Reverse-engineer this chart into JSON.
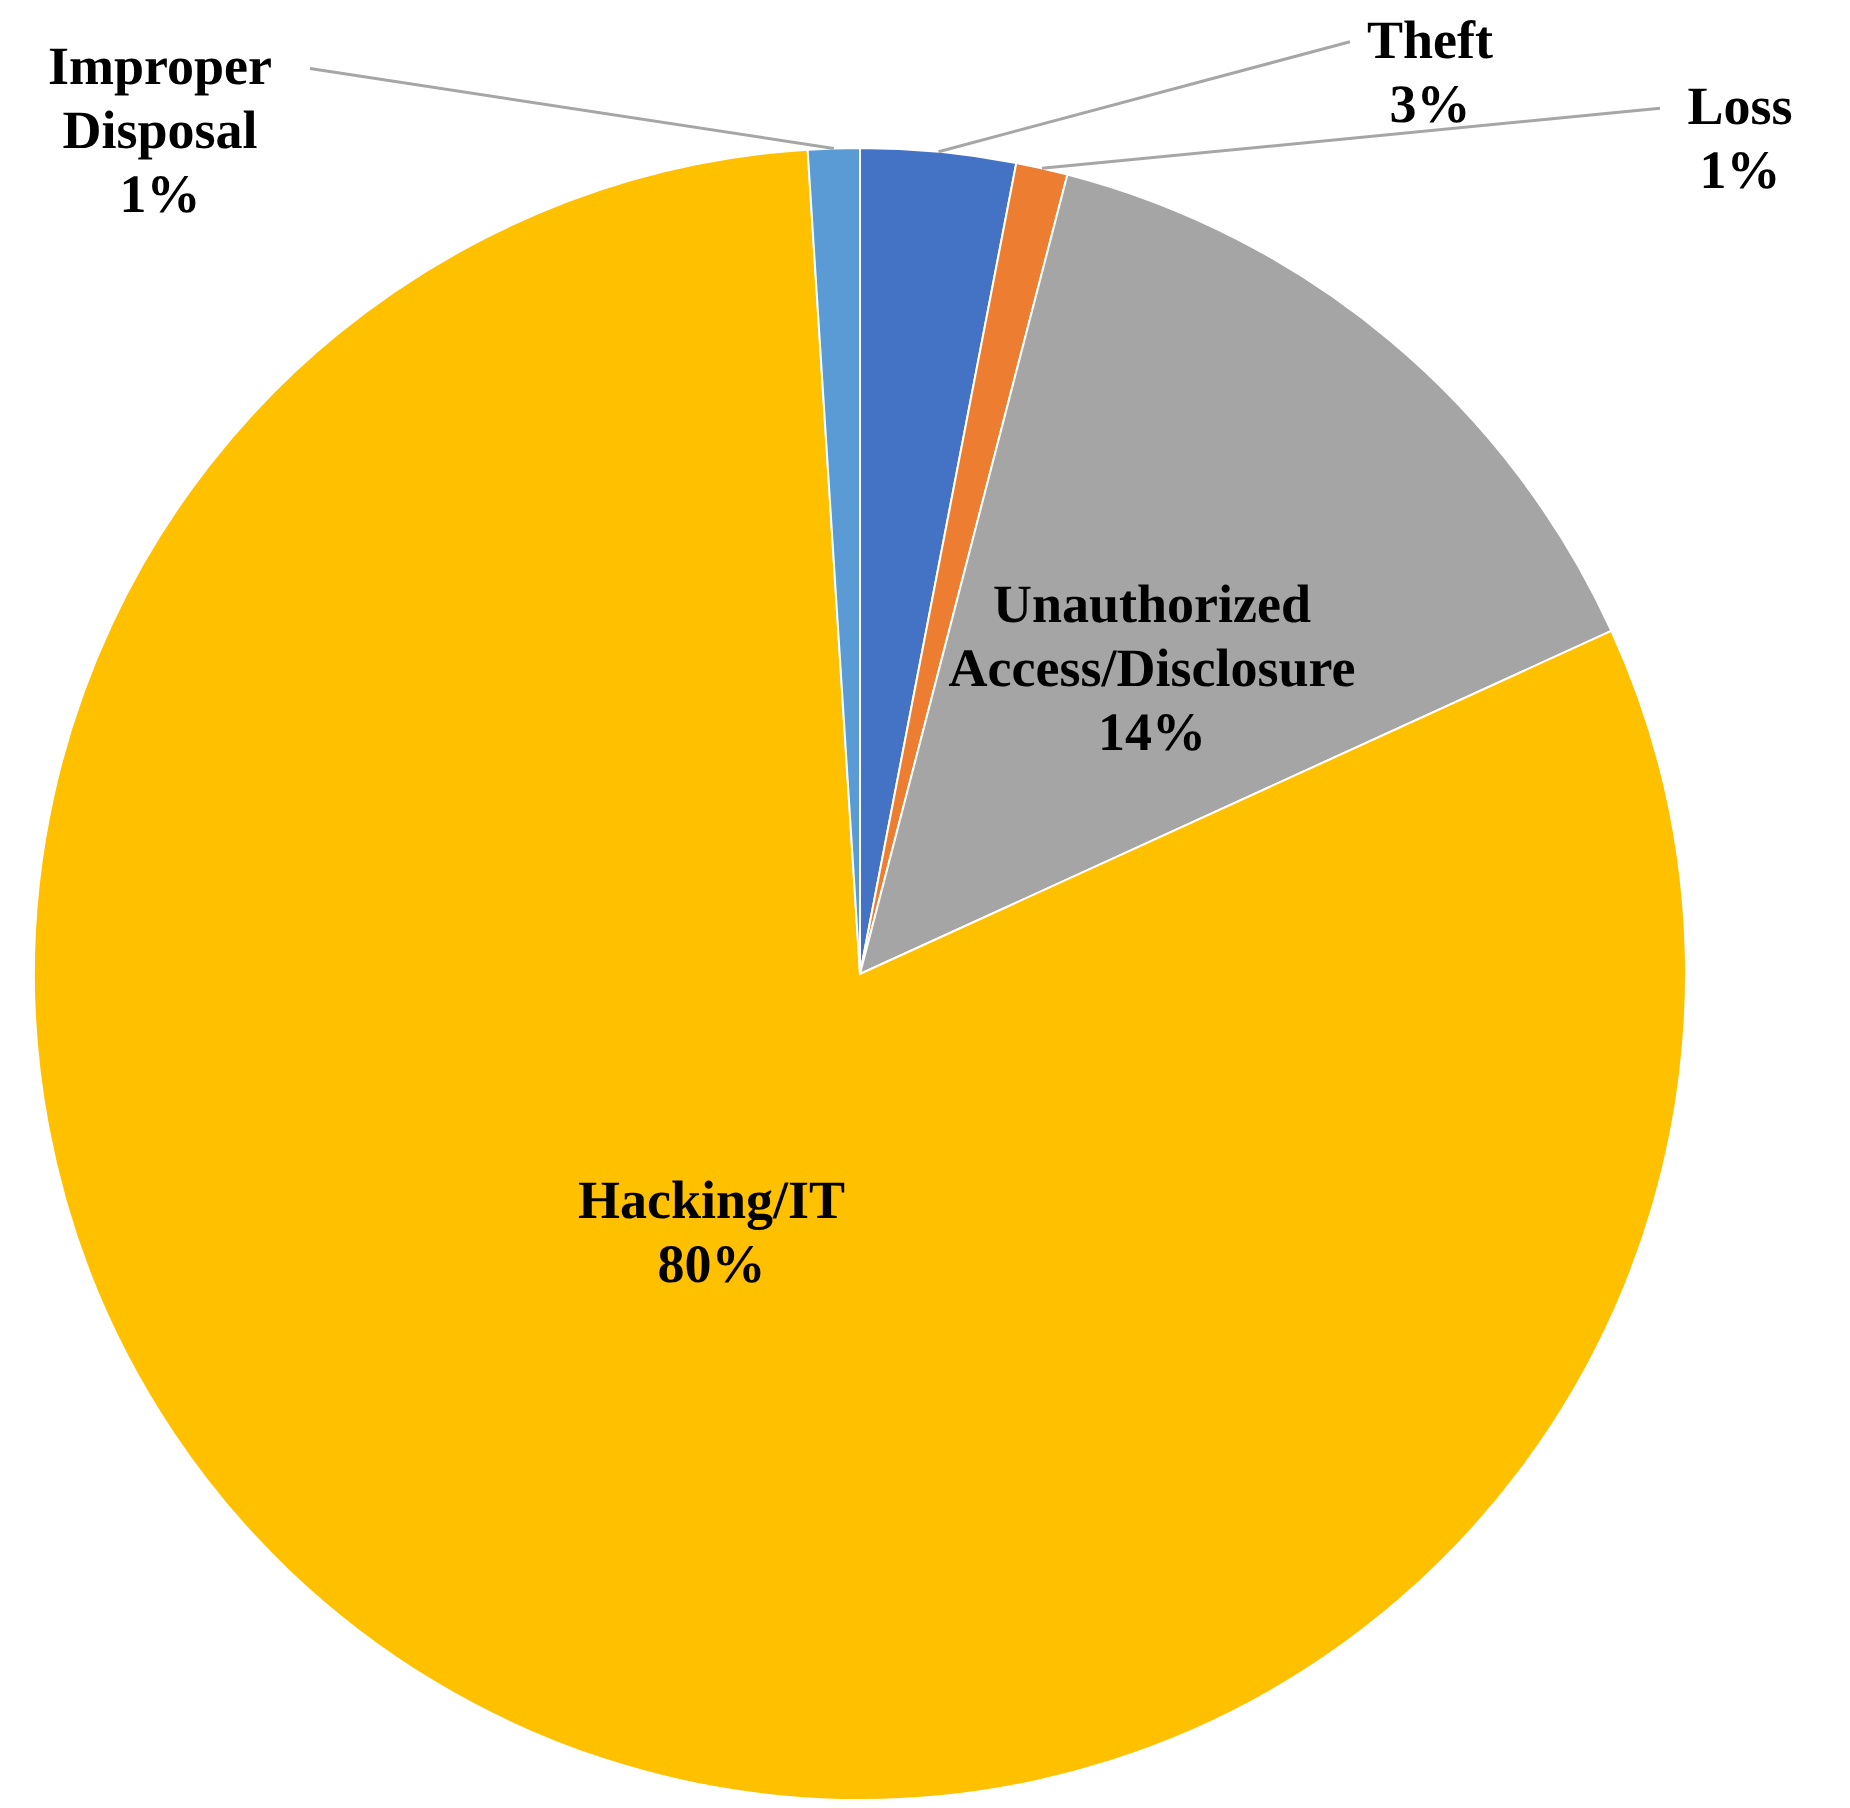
{
  "chart_data": {
    "type": "pie",
    "categories": [
      "Theft",
      "Loss",
      "Unauthorized Access/Disclosure",
      "Hacking/IT",
      "Improper Disposal"
    ],
    "values": [
      3,
      1,
      14,
      80,
      1
    ],
    "value_labels": [
      "3%",
      "1%",
      "14%",
      "80%",
      "1%"
    ],
    "colors": [
      "#4472c4",
      "#ed7d31",
      "#a5a5a5",
      "#ffc000",
      "#5b9bd5"
    ]
  }
}
